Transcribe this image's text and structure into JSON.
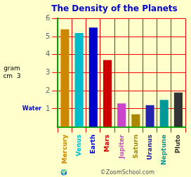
{
  "chart_data": {
    "type": "bar",
    "title": "The Density of the Planets",
    "categories": [
      "Mercury",
      "Venus",
      "Earth",
      "Mars",
      "Jupiter",
      "Saturn",
      "Uranus",
      "Neptune",
      "Pluto"
    ],
    "values": [
      5.4,
      5.2,
      5.5,
      3.7,
      1.3,
      0.7,
      1.2,
      1.5,
      1.9
    ],
    "colors": [
      "#CC8800",
      "#00BBCC",
      "#0000CC",
      "#CC0000",
      "#CC44CC",
      "#AA8800",
      "#2222AA",
      "#009999",
      "#333333"
    ],
    "ylim": [
      0,
      6
    ],
    "yticks": [
      1,
      2,
      3,
      4,
      5,
      6
    ],
    "grid": true,
    "ylabel": "gram\ncm  3",
    "annotations": [
      {
        "text": "Water",
        "y": 1
      },
      {
        "text": "🌍"
      },
      {
        "text": "©ZoomSchool.com"
      }
    ]
  }
}
